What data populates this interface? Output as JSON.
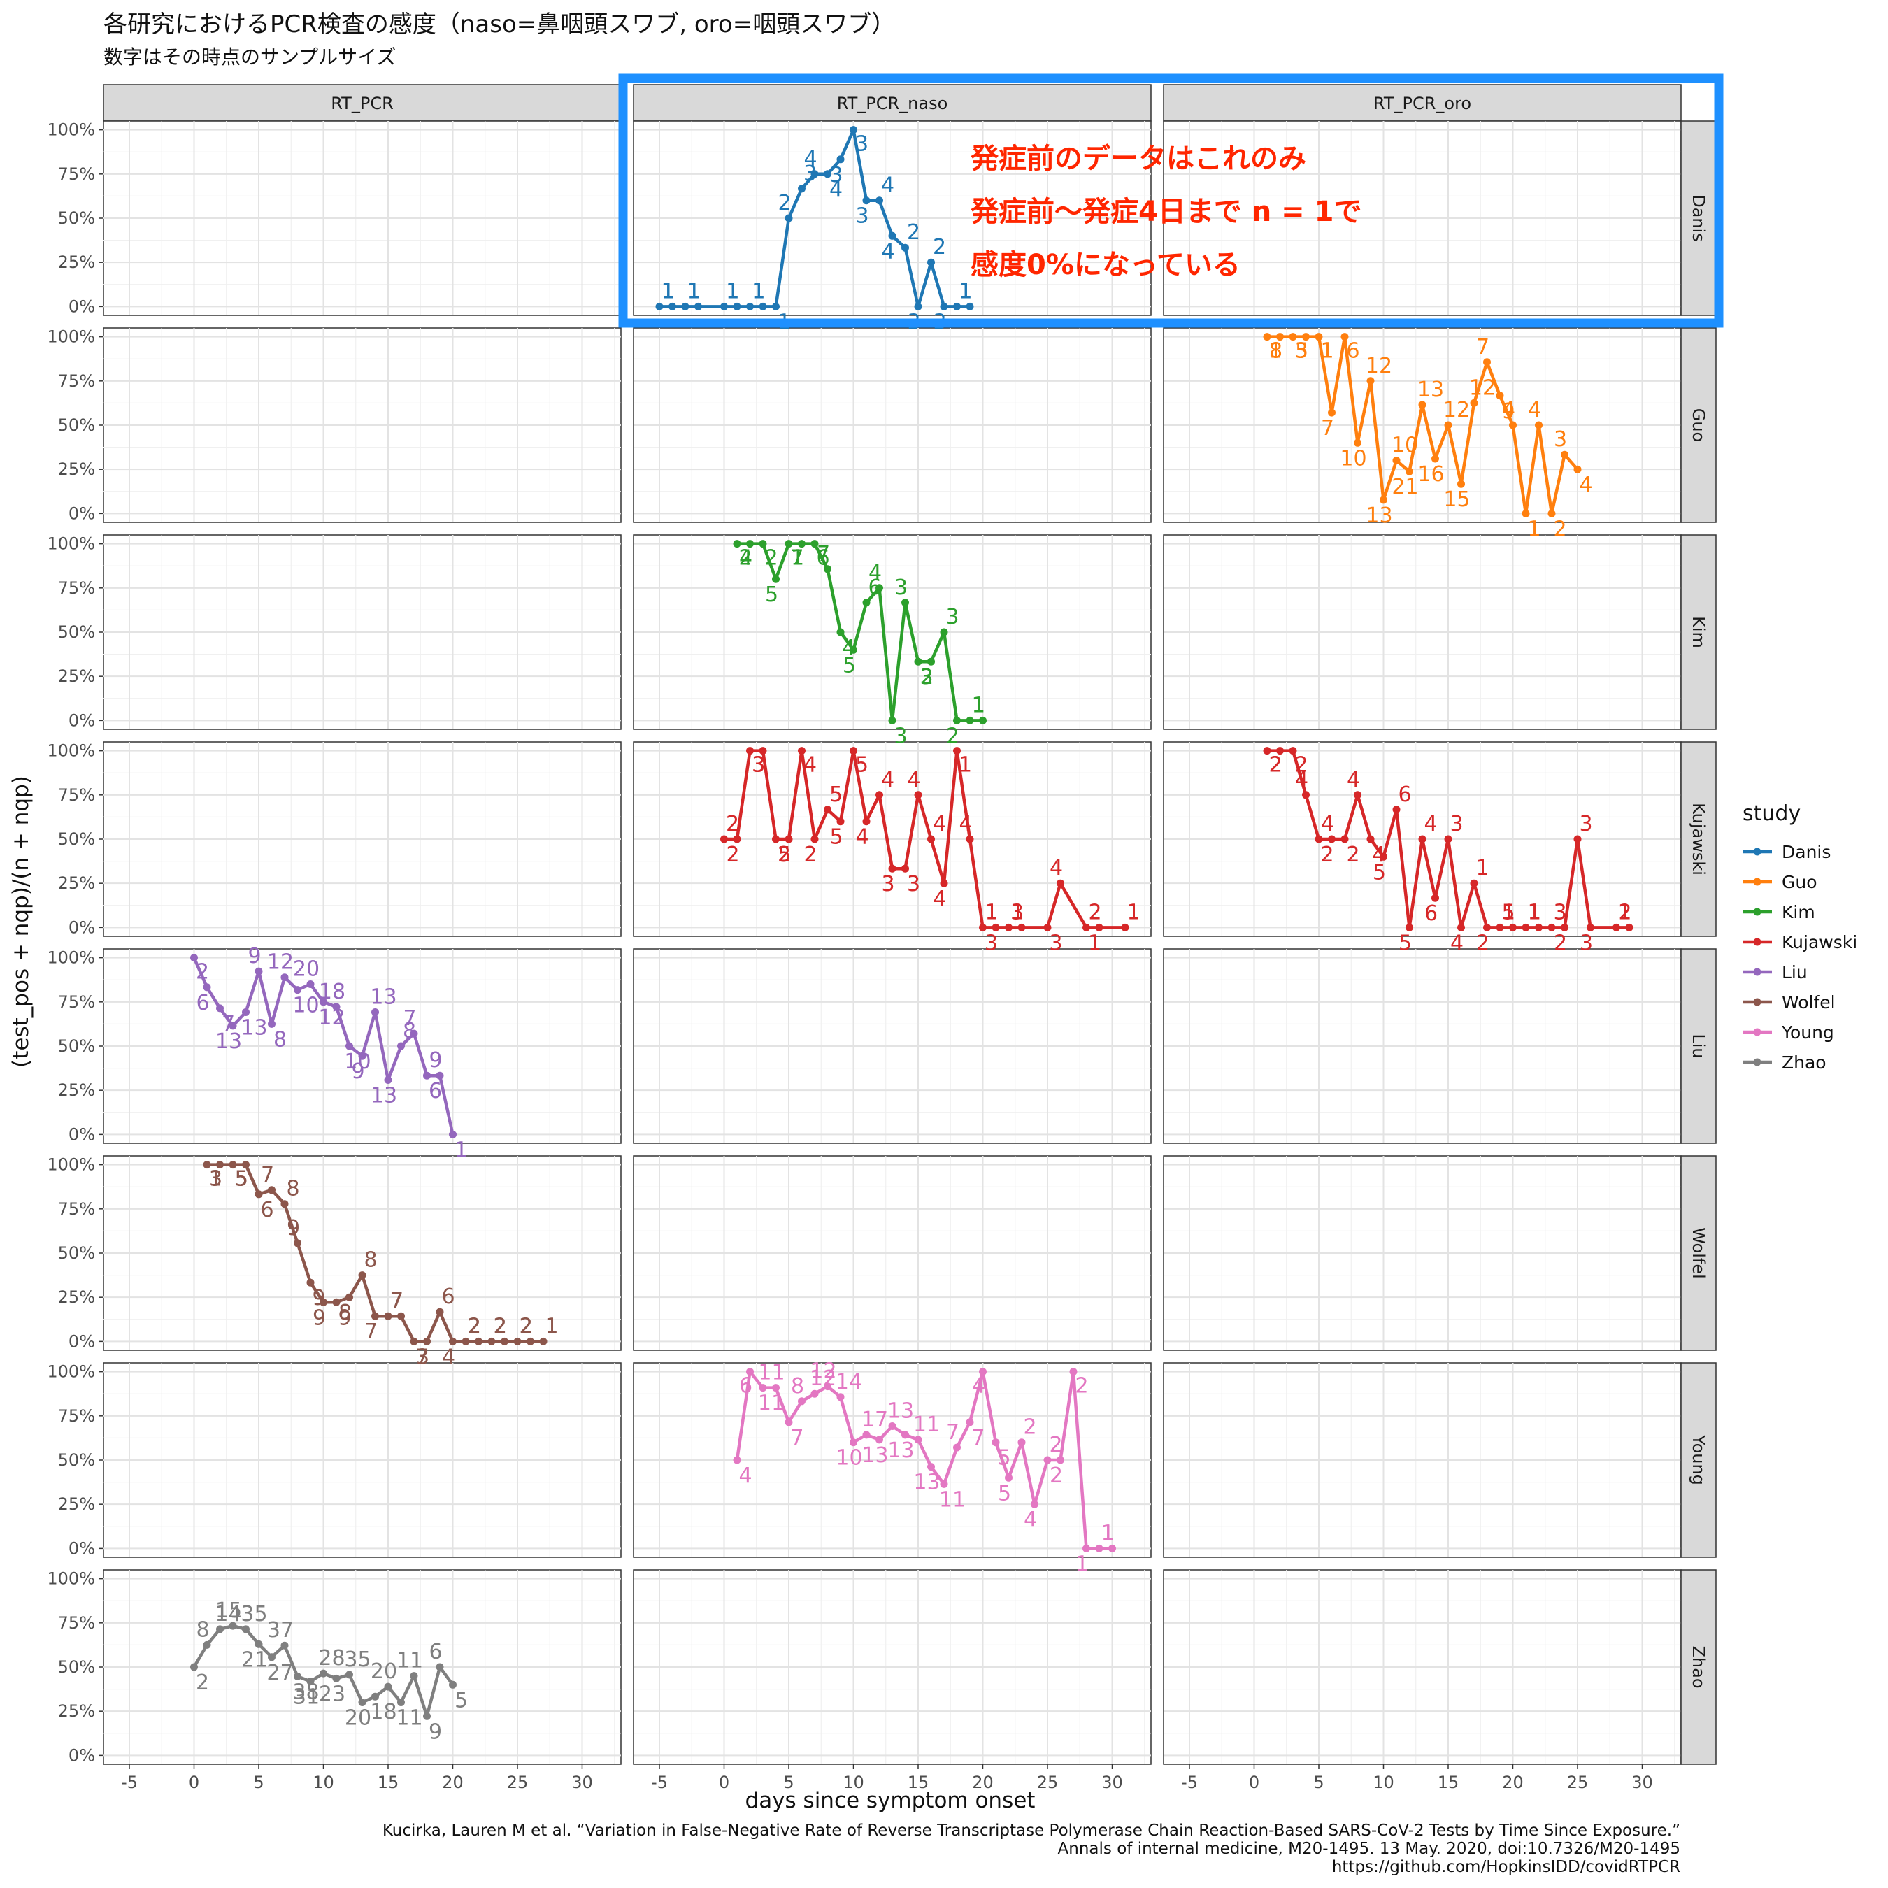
{
  "title": "各研究におけるPCR検査の感度（naso=鼻咽頭スワブ, oro=咽頭スワブ）",
  "subtitle": "数字はその時点のサンプルサイズ",
  "caption": [
    "Kucirka, Lauren M et al. “Variation in False-Negative Rate of Reverse Transcriptase Polymerase Chain Reaction-Based SARS-CoV-2 Tests by Time Since Exposure.”",
    "Annals of internal medicine, M20-1495. 13 May. 2020, doi:10.7326/M20-1495",
    "https://github.com/HopkinsIDD/covidRTPCR"
  ],
  "annotation": {
    "lines": [
      "発症前のデータはこれのみ",
      "発症前〜発症4日まで n = 1で",
      "感度0%になっている"
    ],
    "box_color": "#1e90ff",
    "text_color": "#ff2600"
  },
  "chart_data": {
    "type": "line",
    "xlabel": "days since symptom onset",
    "ylabel": "(test_pos + nqp)/(n + nqp)",
    "xlim": [
      -7,
      33
    ],
    "ylim": [
      -0.05,
      1.05
    ],
    "x_ticks": [
      -5,
      0,
      5,
      10,
      15,
      20,
      25,
      30
    ],
    "y_ticks": [
      0,
      0.25,
      0.5,
      0.75,
      1
    ],
    "y_tick_labels": [
      "0%",
      "25%",
      "50%",
      "75%",
      "100%"
    ],
    "columns": [
      "RT_PCR",
      "RT_PCR_naso",
      "RT_PCR_oro"
    ],
    "rows": [
      "Danis",
      "Guo",
      "Kim",
      "Kujawski",
      "Liu",
      "Wolfel",
      "Young",
      "Zhao"
    ],
    "legend_title": "study",
    "legend_position": "right",
    "grid": true,
    "colors": {
      "Danis": "#1f77b4",
      "Guo": "#ff7f0e",
      "Kim": "#2ca02c",
      "Kujawski": "#d62728",
      "Liu": "#9467bd",
      "Wolfel": "#8c564b",
      "Young": "#e377c2",
      "Zhao": "#7f7f7f"
    },
    "series": [
      {
        "name": "Danis",
        "row": 0,
        "col": 1,
        "x": [
          -5,
          -4,
          -3,
          -2,
          0,
          1,
          2,
          3,
          4,
          5,
          6,
          7,
          8,
          9,
          10,
          11,
          12,
          13,
          14,
          15,
          16,
          17,
          18,
          19
        ],
        "y": [
          0,
          0,
          0,
          0,
          0,
          0,
          0,
          0,
          0,
          0.5,
          0.667,
          0.75,
          0.75,
          0.833,
          1,
          0.6,
          0.6,
          0.4,
          0.333,
          0,
          0.25,
          0,
          0,
          0
        ],
        "n": [
          "1",
          "1",
          "1",
          "1",
          "1",
          "1",
          "1",
          "1",
          "1",
          "2",
          "3",
          "4",
          "4",
          "3",
          "3",
          "3",
          "4",
          "4",
          "2",
          "3",
          "2",
          "3",
          "1",
          "1"
        ]
      },
      {
        "name": "Guo",
        "row": 1,
        "col": 2,
        "x": [
          1,
          2,
          3,
          4,
          5,
          6,
          7,
          8,
          9,
          10,
          11,
          12,
          13,
          14,
          15,
          16,
          17,
          18,
          19,
          20,
          21,
          22,
          23,
          24,
          25
        ],
        "y": [
          1,
          1,
          1,
          1,
          1,
          0.571,
          1,
          0.4,
          0.75,
          0.077,
          0.3,
          0.238,
          0.615,
          0.31,
          0.5,
          0.167,
          0.625,
          0.857,
          0.667,
          0.5,
          0,
          0.5,
          0,
          0.333,
          0.25
        ],
        "n": [
          "1",
          "8",
          "3",
          "5",
          "1",
          "7",
          "6",
          "10",
          "12",
          "13",
          "10",
          "21",
          "13",
          "16",
          "12",
          "15",
          "12",
          "7",
          "9",
          "4",
          "1",
          "4",
          "2",
          "3",
          "4"
        ]
      },
      {
        "name": "Kim",
        "row": 2,
        "col": 1,
        "x": [
          1,
          2,
          3,
          4,
          5,
          6,
          7,
          8,
          9,
          10,
          11,
          12,
          13,
          14,
          15,
          16,
          17,
          18,
          19,
          20
        ],
        "y": [
          1,
          1,
          1,
          0.8,
          1,
          1,
          1,
          0.857,
          0.5,
          0.4,
          0.667,
          0.75,
          0,
          0.667,
          0.333,
          0.333,
          0.5,
          0,
          0,
          0
        ],
        "n": [
          "2",
          "4",
          "2",
          "5",
          "7",
          "1",
          "6",
          "7",
          "4",
          "5",
          "6",
          "4",
          "3",
          "3",
          "3",
          "2",
          "3",
          "2",
          "1",
          "1"
        ]
      },
      {
        "name": "Kujawski",
        "row": 3,
        "col": 1,
        "x": [
          0,
          1,
          2,
          3,
          4,
          5,
          6,
          7,
          8,
          9,
          10,
          11,
          12,
          13,
          14,
          15,
          16,
          17,
          18,
          19,
          20,
          21,
          22,
          23,
          25,
          26,
          28,
          29,
          31
        ],
        "y": [
          0.5,
          0.5,
          1,
          1,
          0.5,
          0.5,
          1,
          0.5,
          0.667,
          0.6,
          1,
          0.6,
          0.75,
          0.333,
          0.333,
          0.75,
          0.5,
          0.25,
          1,
          0.5,
          0,
          0,
          0,
          0,
          0,
          0.25,
          0,
          0,
          0
        ],
        "n": [
          "2",
          "2",
          "3",
          "3",
          "2",
          "5",
          "4",
          "2",
          "5",
          "5",
          "5",
          "4",
          "4",
          "3",
          "3",
          "4",
          "4",
          "4",
          "1",
          "4",
          "3",
          "1",
          "3",
          "1",
          "3",
          "4",
          "1",
          "2",
          "1"
        ]
      },
      {
        "name": "Kujawski",
        "row": 3,
        "col": 2,
        "x": [
          1,
          2,
          3,
          4,
          5,
          6,
          7,
          8,
          9,
          10,
          11,
          12,
          13,
          14,
          15,
          16,
          17,
          18,
          19,
          20,
          21,
          22,
          23,
          24,
          25,
          26,
          28,
          29
        ],
        "y": [
          1,
          1,
          1,
          0.75,
          0.5,
          0.5,
          0.5,
          0.75,
          0.5,
          0.4,
          0.667,
          0,
          0.5,
          0.167,
          0.5,
          0,
          0.25,
          0,
          0,
          0,
          0,
          0,
          0,
          0,
          0.5,
          0,
          0,
          0
        ],
        "n": [
          "2",
          "2",
          "2",
          "4",
          "2",
          "4",
          "2",
          "4",
          "4",
          "5",
          "6",
          "5",
          "4",
          "6",
          "3",
          "4",
          "1",
          "2",
          "5",
          "1",
          "1",
          "1",
          "3",
          "2",
          "3",
          "3",
          "1",
          "2"
        ]
      },
      {
        "name": "Liu",
        "row": 4,
        "col": 0,
        "x": [
          0,
          1,
          2,
          3,
          4,
          5,
          6,
          7,
          8,
          9,
          10,
          11,
          12,
          13,
          14,
          15,
          16,
          17,
          18,
          19,
          20
        ],
        "y": [
          1,
          0.833,
          0.714,
          0.615,
          0.692,
          0.923,
          0.625,
          0.889,
          0.818,
          0.85,
          0.75,
          0.722,
          0.5,
          0.444,
          0.692,
          0.308,
          0.5,
          0.571,
          0.333,
          0.333,
          0
        ],
        "n": [
          "2",
          "6",
          "7",
          "13",
          "13",
          "9",
          "8",
          "12",
          "10",
          "20",
          "12",
          "18",
          "10",
          "9",
          "13",
          "13",
          "8",
          "7",
          "6",
          "9",
          "1"
        ]
      },
      {
        "name": "Wolfel",
        "row": 5,
        "col": 0,
        "x": [
          1,
          2,
          3,
          4,
          5,
          6,
          7,
          8,
          9,
          10,
          11,
          12,
          13,
          14,
          15,
          16,
          17,
          18,
          19,
          20,
          21,
          22,
          23,
          24,
          25,
          26,
          27
        ],
        "y": [
          1,
          1,
          1,
          1,
          0.833,
          0.857,
          0.778,
          0.556,
          0.333,
          0.222,
          0.222,
          0.25,
          0.375,
          0.143,
          0.143,
          0.143,
          0,
          0,
          0.167,
          0,
          0,
          0,
          0,
          0,
          0,
          0,
          0
        ],
        "n": [
          "1",
          "3",
          "5",
          "5",
          "6",
          "7",
          "8",
          "9",
          "9",
          "9",
          "9",
          "8",
          "8",
          "7",
          "7",
          "7",
          "7",
          "3",
          "6",
          "4",
          "2",
          "2",
          "2",
          "2",
          "2",
          "2",
          "1"
        ]
      },
      {
        "name": "Young",
        "row": 6,
        "col": 1,
        "x": [
          1,
          2,
          3,
          4,
          5,
          6,
          7,
          8,
          9,
          10,
          11,
          12,
          13,
          14,
          15,
          16,
          17,
          18,
          19,
          20,
          21,
          22,
          23,
          24,
          25,
          26,
          27,
          28,
          29,
          30
        ],
        "y": [
          0.5,
          1,
          0.909,
          0.909,
          0.714,
          0.833,
          0.875,
          0.917,
          0.857,
          0.6,
          0.643,
          0.615,
          0.692,
          0.643,
          0.615,
          0.462,
          0.364,
          0.571,
          0.714,
          1,
          0.6,
          0.4,
          0.6,
          0.25,
          0.5,
          0.5,
          1,
          0,
          0,
          0
        ],
        "n": [
          "4",
          "6",
          "11",
          "11",
          "7",
          "8",
          "12",
          "12",
          "14",
          "10",
          "17",
          "13",
          "13",
          "13",
          "11",
          "13",
          "11",
          "7",
          "7",
          "4",
          "5",
          "5",
          "2",
          "4",
          "2",
          "2",
          "2",
          "1",
          "1",
          "1"
        ]
      },
      {
        "name": "Zhao",
        "row": 7,
        "col": 0,
        "x": [
          0,
          1,
          2,
          3,
          4,
          5,
          6,
          7,
          8,
          9,
          10,
          11,
          12,
          13,
          14,
          15,
          16,
          17,
          18,
          19,
          20
        ],
        "y": [
          0.5,
          0.625,
          0.714,
          0.733,
          0.714,
          0.629,
          0.556,
          0.622,
          0.447,
          0.419,
          0.464,
          0.435,
          0.457,
          0.3,
          0.333,
          0.389,
          0.3,
          0.45,
          0.222,
          0.5,
          0.4
        ],
        "n": [
          "2",
          "8",
          "14",
          "15",
          "35",
          "21",
          "27",
          "37",
          "38",
          "31",
          "28",
          "23",
          "35",
          "20",
          "18",
          "20",
          "11",
          "11",
          "9",
          "6",
          "5"
        ]
      }
    ]
  }
}
